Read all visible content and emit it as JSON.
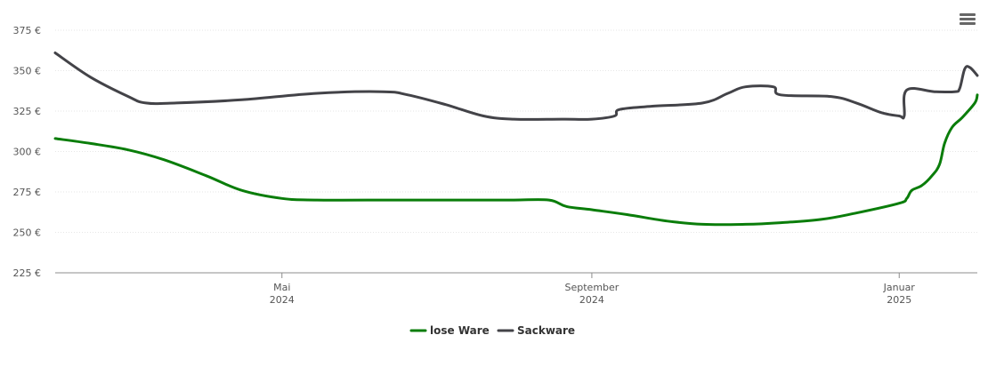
{
  "chart_data": {
    "type": "line",
    "title": "",
    "xlabel": "",
    "ylabel": "",
    "ylim": [
      225,
      375
    ],
    "yticks": [
      {
        "value": 225,
        "label": "225 €"
      },
      {
        "value": 250,
        "label": "250 €"
      },
      {
        "value": 275,
        "label": "275 €"
      },
      {
        "value": 300,
        "label": "300 €"
      },
      {
        "value": 325,
        "label": "325 €"
      },
      {
        "value": 350,
        "label": "350 €"
      },
      {
        "value": 375,
        "label": "375 €"
      }
    ],
    "xlim": [
      "2024-02-01",
      "2025-02-01"
    ],
    "xticks": [
      {
        "date": "2024-05-01",
        "month": "Mai",
        "year": "2024"
      },
      {
        "date": "2024-09-01",
        "month": "September",
        "year": "2024"
      },
      {
        "date": "2025-01-01",
        "month": "Januar",
        "year": "2025"
      }
    ],
    "grid": true,
    "legend": "bottom-center",
    "series": [
      {
        "name": "lose Ware",
        "color": "#0a7d0a",
        "points": [
          [
            "2024-02-01",
            308
          ],
          [
            "2024-02-15",
            305
          ],
          [
            "2024-03-01",
            301
          ],
          [
            "2024-03-15",
            295
          ],
          [
            "2024-04-01",
            285
          ],
          [
            "2024-04-15",
            276
          ],
          [
            "2024-05-01",
            271
          ],
          [
            "2024-05-15",
            270
          ],
          [
            "2024-06-15",
            270
          ],
          [
            "2024-07-15",
            270
          ],
          [
            "2024-08-01",
            270
          ],
          [
            "2024-08-15",
            270
          ],
          [
            "2024-08-22",
            266
          ],
          [
            "2024-09-01",
            264
          ],
          [
            "2024-09-15",
            261
          ],
          [
            "2024-10-01",
            257
          ],
          [
            "2024-10-15",
            255
          ],
          [
            "2024-11-01",
            255
          ],
          [
            "2024-11-15",
            256
          ],
          [
            "2024-12-01",
            258
          ],
          [
            "2024-12-15",
            262
          ],
          [
            "2025-01-01",
            268
          ],
          [
            "2025-01-04",
            271
          ],
          [
            "2025-01-06",
            276
          ],
          [
            "2025-01-10",
            279
          ],
          [
            "2025-01-14",
            285
          ],
          [
            "2025-01-17",
            292
          ],
          [
            "2025-01-19",
            305
          ],
          [
            "2025-01-22",
            315
          ],
          [
            "2025-01-26",
            321
          ],
          [
            "2025-01-31",
            330
          ],
          [
            "2025-02-01",
            335
          ]
        ]
      },
      {
        "name": "Sackware",
        "color": "#434348",
        "points": [
          [
            "2024-02-01",
            361
          ],
          [
            "2024-02-15",
            346
          ],
          [
            "2024-03-01",
            334
          ],
          [
            "2024-03-08",
            330
          ],
          [
            "2024-03-20",
            330
          ],
          [
            "2024-04-15",
            332
          ],
          [
            "2024-05-15",
            336
          ],
          [
            "2024-06-10",
            337
          ],
          [
            "2024-06-20",
            335
          ],
          [
            "2024-07-05",
            329
          ],
          [
            "2024-07-20",
            322
          ],
          [
            "2024-08-01",
            320
          ],
          [
            "2024-08-20",
            320
          ],
          [
            "2024-09-01",
            320
          ],
          [
            "2024-09-10",
            322
          ],
          [
            "2024-09-12",
            326
          ],
          [
            "2024-09-25",
            328
          ],
          [
            "2024-10-15",
            330
          ],
          [
            "2024-10-25",
            336
          ],
          [
            "2024-11-01",
            340
          ],
          [
            "2024-11-12",
            340
          ],
          [
            "2024-11-15",
            335
          ],
          [
            "2024-12-05",
            334
          ],
          [
            "2024-12-15",
            330
          ],
          [
            "2024-12-25",
            324
          ],
          [
            "2025-01-01",
            322
          ],
          [
            "2025-01-03",
            322
          ],
          [
            "2025-01-04",
            338
          ],
          [
            "2025-01-15",
            337
          ],
          [
            "2025-01-23",
            337
          ],
          [
            "2025-01-25",
            339
          ],
          [
            "2025-01-27",
            351
          ],
          [
            "2025-01-29",
            352
          ],
          [
            "2025-02-01",
            347
          ]
        ]
      }
    ]
  },
  "menu": {
    "icon": "hamburger-menu-icon"
  }
}
